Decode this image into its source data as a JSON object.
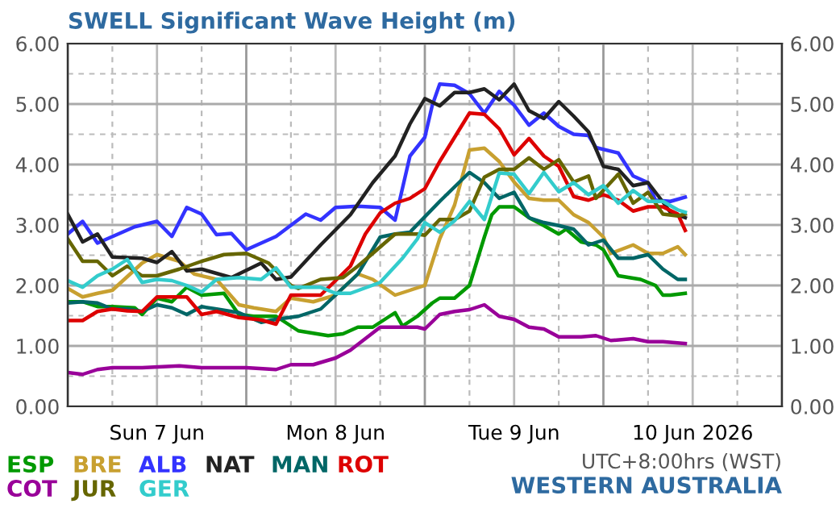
{
  "chart_data": {
    "type": "line",
    "title": "SWELL Significant Wave Height (m)",
    "xlim": [
      "2026-06-07T00:00",
      "2026-06-11T00:00"
    ],
    "xticks": [
      {
        "value": "2026-06-07T00:00",
        "label": null
      },
      {
        "value": "2026-06-07T06:00",
        "label": null
      },
      {
        "value": "2026-06-07T12:00",
        "label": "Sun 7 Jun"
      },
      {
        "value": "2026-06-07T18:00",
        "label": null
      },
      {
        "value": "2026-06-08T00:00",
        "label": null
      },
      {
        "value": "2026-06-08T06:00",
        "label": null
      },
      {
        "value": "2026-06-08T12:00",
        "label": "Mon 8 Jun"
      },
      {
        "value": "2026-06-08T18:00",
        "label": null
      },
      {
        "value": "2026-06-09T00:00",
        "label": null
      },
      {
        "value": "2026-06-09T06:00",
        "label": null
      },
      {
        "value": "2026-06-09T12:00",
        "label": "Tue 9 Jun"
      },
      {
        "value": "2026-06-09T18:00",
        "label": null
      },
      {
        "value": "2026-06-10T00:00",
        "label": null
      },
      {
        "value": "2026-06-10T06:00",
        "label": null
      },
      {
        "value": "2026-06-10T12:00",
        "label": "10 Jun 2026"
      },
      {
        "value": "2026-06-10T18:00",
        "label": null
      },
      {
        "value": "2026-06-11T00:00",
        "label": null
      }
    ],
    "ylim": [
      0,
      6
    ],
    "yticks": [
      {
        "value": 0,
        "label": "0.00"
      },
      {
        "value": 0.5,
        "label": null
      },
      {
        "value": 1,
        "label": "1.00"
      },
      {
        "value": 1.5,
        "label": null
      },
      {
        "value": 2,
        "label": "2.00"
      },
      {
        "value": 2.5,
        "label": null
      },
      {
        "value": 3,
        "label": "3.00"
      },
      {
        "value": 3.5,
        "label": null
      },
      {
        "value": 4,
        "label": "4.00"
      },
      {
        "value": 4.5,
        "label": null
      },
      {
        "value": 5,
        "label": "5.00"
      },
      {
        "value": 5.5,
        "label": null
      },
      {
        "value": 6,
        "label": "6.00"
      }
    ],
    "y2lim": [
      0,
      6
    ],
    "y2ticks": [
      {
        "value": 0,
        "label": "0.00"
      },
      {
        "value": 1,
        "label": "1.00"
      },
      {
        "value": 2,
        "label": "2.00"
      },
      {
        "value": 3,
        "label": "3.00"
      },
      {
        "value": 4,
        "label": "4.00"
      },
      {
        "value": 5,
        "label": "5.00"
      },
      {
        "value": 6,
        "label": "6.00"
      }
    ],
    "grid": true,
    "legend": "bottom",
    "marker": "none",
    "line_style": "solid",
    "annotations": [
      "UTC+8:00hrs (WST)",
      "WESTERN AUSTRALIA"
    ],
    "series": [
      {
        "name": "ESP",
        "color": "#009900",
        "x": [
          "2026-06-07T00:00",
          "2026-06-07T02:00",
          "2026-06-07T04:00",
          "2026-06-07T06:00",
          "2026-06-07T09:00",
          "2026-06-07T10:00",
          "2026-06-07T12:00",
          "2026-06-07T14:00",
          "2026-06-07T16:00",
          "2026-06-07T18:00",
          "2026-06-07T21:00",
          "2026-06-07T23:00",
          "2026-06-08T01:00",
          "2026-06-08T04:00",
          "2026-06-08T07:00",
          "2026-06-08T11:00",
          "2026-06-08T13:00",
          "2026-06-08T15:00",
          "2026-06-08T17:00",
          "2026-06-08T20:00",
          "2026-06-08T21:00",
          "2026-06-08T23:00",
          "2026-06-09T01:00",
          "2026-06-09T02:00",
          "2026-06-09T04:00",
          "2026-06-09T06:00",
          "2026-06-09T08:00",
          "2026-06-09T09:00",
          "2026-06-09T10:00",
          "2026-06-09T12:00",
          "2026-06-09T14:00",
          "2026-06-09T16:00",
          "2026-06-09T18:00",
          "2026-06-09T19:00",
          "2026-06-09T21:00",
          "2026-06-09T23:00",
          "2026-06-10T00:00",
          "2026-06-10T02:00",
          "2026-06-10T05:00",
          "2026-06-10T07:00",
          "2026-06-10T08:00",
          "2026-06-10T09:00",
          "2026-06-10T11:00"
        ],
        "values": [
          1.73,
          1.73,
          1.65,
          1.65,
          1.63,
          1.52,
          1.79,
          1.73,
          1.97,
          1.84,
          1.87,
          1.52,
          1.49,
          1.49,
          1.25,
          1.17,
          1.2,
          1.31,
          1.31,
          1.55,
          1.33,
          1.49,
          1.71,
          1.79,
          1.79,
          2.0,
          2.8,
          3.17,
          3.3,
          3.3,
          3.12,
          2.99,
          2.85,
          2.93,
          2.72,
          2.67,
          2.59,
          2.16,
          2.1,
          2.0,
          1.84,
          1.84,
          1.87
        ]
      },
      {
        "name": "BRE",
        "color": "#c8a030",
        "x": [
          "2026-06-07T00:00",
          "2026-06-07T02:00",
          "2026-06-07T04:00",
          "2026-06-07T06:00",
          "2026-06-07T10:00",
          "2026-06-07T12:00",
          "2026-06-07T15:00",
          "2026-06-07T17:00",
          "2026-06-07T19:00",
          "2026-06-07T20:00",
          "2026-06-07T23:00",
          "2026-06-08T01:00",
          "2026-06-08T04:00",
          "2026-06-08T06:00",
          "2026-06-08T09:00",
          "2026-06-08T12:00",
          "2026-06-08T15:00",
          "2026-06-08T17:00",
          "2026-06-08T20:00",
          "2026-06-08T22:00",
          "2026-06-09T00:00",
          "2026-06-09T02:00",
          "2026-06-09T04:00",
          "2026-06-09T06:00",
          "2026-06-09T08:00",
          "2026-06-09T10:00",
          "2026-06-09T12:00",
          "2026-06-09T14:00",
          "2026-06-09T16:00",
          "2026-06-09T18:00",
          "2026-06-09T20:00",
          "2026-06-09T22:00",
          "2026-06-10T00:00",
          "2026-06-10T01:00",
          "2026-06-10T04:00",
          "2026-06-10T06:00",
          "2026-06-10T08:00",
          "2026-06-10T10:00",
          "2026-06-10T11:00"
        ],
        "values": [
          1.95,
          1.81,
          1.87,
          1.92,
          2.37,
          2.51,
          2.4,
          2.19,
          2.13,
          2.1,
          1.68,
          1.63,
          1.57,
          1.79,
          1.73,
          1.84,
          2.19,
          2.1,
          1.84,
          1.92,
          2.0,
          2.77,
          3.33,
          4.24,
          4.27,
          4.05,
          3.71,
          3.44,
          3.41,
          3.41,
          3.17,
          3.04,
          2.8,
          2.53,
          2.67,
          2.53,
          2.53,
          2.64,
          2.51
        ]
      },
      {
        "name": "ALB",
        "color": "#3333ff",
        "x": [
          "2026-06-07T00:00",
          "2026-06-07T02:00",
          "2026-06-07T04:00",
          "2026-06-07T09:00",
          "2026-06-07T12:00",
          "2026-06-07T14:00",
          "2026-06-07T16:00",
          "2026-06-07T18:00",
          "2026-06-07T20:00",
          "2026-06-07T22:00",
          "2026-06-08T00:00",
          "2026-06-08T04:00",
          "2026-06-08T08:00",
          "2026-06-08T10:00",
          "2026-06-08T12:00",
          "2026-06-08T15:00",
          "2026-06-08T18:00",
          "2026-06-08T20:00",
          "2026-06-08T22:00",
          "2026-06-09T00:00",
          "2026-06-09T01:00",
          "2026-06-09T02:00",
          "2026-06-09T04:00",
          "2026-06-09T06:00",
          "2026-06-09T08:00",
          "2026-06-09T10:00",
          "2026-06-09T12:00",
          "2026-06-09T14:00",
          "2026-06-09T16:00",
          "2026-06-09T18:00",
          "2026-06-09T20:00",
          "2026-06-09T22:00",
          "2026-06-09T23:00",
          "2026-06-10T02:00",
          "2026-06-10T04:00",
          "2026-06-10T06:00",
          "2026-06-10T07:00",
          "2026-06-10T09:00",
          "2026-06-10T11:00"
        ],
        "values": [
          2.85,
          3.06,
          2.7,
          2.97,
          3.06,
          2.81,
          3.29,
          3.18,
          2.84,
          2.86,
          2.59,
          2.81,
          3.18,
          3.08,
          3.29,
          3.31,
          3.29,
          3.08,
          4.14,
          4.45,
          4.98,
          5.33,
          5.31,
          5.17,
          4.85,
          5.21,
          4.98,
          4.65,
          4.85,
          4.63,
          4.5,
          4.48,
          4.28,
          4.19,
          3.81,
          3.7,
          3.41,
          3.39,
          3.46
        ]
      },
      {
        "name": "NAT",
        "color": "#222222",
        "x": [
          "2026-06-07T00:00",
          "2026-06-07T02:00",
          "2026-06-07T04:00",
          "2026-06-07T06:00",
          "2026-06-07T10:00",
          "2026-06-07T12:00",
          "2026-06-07T14:00",
          "2026-06-07T16:00",
          "2026-06-07T18:00",
          "2026-06-07T22:00",
          "2026-06-08T02:00",
          "2026-06-08T04:00",
          "2026-06-08T06:00",
          "2026-06-08T10:00",
          "2026-06-08T14:00",
          "2026-06-08T17:00",
          "2026-06-08T20:00",
          "2026-06-08T22:00",
          "2026-06-09T00:00",
          "2026-06-09T02:00",
          "2026-06-09T04:00",
          "2026-06-09T06:00",
          "2026-06-09T08:00",
          "2026-06-09T10:00",
          "2026-06-09T12:00",
          "2026-06-09T14:00",
          "2026-06-09T16:00",
          "2026-06-09T18:00",
          "2026-06-09T20:00",
          "2026-06-09T22:00",
          "2026-06-10T00:00",
          "2026-06-10T02:00",
          "2026-06-10T04:00",
          "2026-06-10T06:00",
          "2026-06-10T08:00",
          "2026-06-10T09:00",
          "2026-06-10T11:00"
        ],
        "values": [
          3.18,
          2.72,
          2.85,
          2.47,
          2.45,
          2.38,
          2.56,
          2.24,
          2.27,
          2.13,
          2.37,
          2.1,
          2.14,
          2.67,
          3.17,
          3.7,
          4.14,
          4.67,
          5.09,
          4.97,
          5.19,
          5.19,
          5.25,
          5.07,
          5.33,
          4.89,
          4.76,
          5.04,
          4.8,
          4.54,
          3.97,
          3.92,
          3.65,
          3.7,
          3.38,
          3.21,
          3.12
        ]
      },
      {
        "name": "MAN",
        "color": "#006666",
        "x": [
          "2026-06-07T00:00",
          "2026-06-07T02:00",
          "2026-06-07T04:00",
          "2026-06-07T06:00",
          "2026-06-07T08:00",
          "2026-06-07T10:00",
          "2026-06-07T12:00",
          "2026-06-07T14:00",
          "2026-06-07T16:00",
          "2026-06-07T18:00",
          "2026-06-07T20:00",
          "2026-06-07T23:00",
          "2026-06-08T02:00",
          "2026-06-08T04:00",
          "2026-06-08T07:00",
          "2026-06-08T10:00",
          "2026-06-08T12:00",
          "2026-06-08T15:00",
          "2026-06-08T18:00",
          "2026-06-08T20:00",
          "2026-06-08T22:00",
          "2026-06-09T02:00",
          "2026-06-09T06:00",
          "2026-06-09T08:00",
          "2026-06-09T10:00",
          "2026-06-09T12:00",
          "2026-06-09T14:00",
          "2026-06-09T16:00",
          "2026-06-09T18:00",
          "2026-06-09T20:00",
          "2026-06-09T22:00",
          "2026-06-10T00:00",
          "2026-06-10T02:00",
          "2026-06-10T04:00",
          "2026-06-10T06:00",
          "2026-06-10T08:00",
          "2026-06-10T10:00",
          "2026-06-10T11:00"
        ],
        "values": [
          1.71,
          1.73,
          1.71,
          1.61,
          1.61,
          1.57,
          1.68,
          1.63,
          1.52,
          1.65,
          1.61,
          1.55,
          1.39,
          1.44,
          1.49,
          1.61,
          1.84,
          2.19,
          2.8,
          2.85,
          2.88,
          3.39,
          3.87,
          3.7,
          3.44,
          3.54,
          3.12,
          3.04,
          2.99,
          2.93,
          2.67,
          2.75,
          2.45,
          2.45,
          2.51,
          2.27,
          2.1,
          2.1
        ]
      },
      {
        "name": "ROT",
        "color": "#dd0000",
        "x": [
          "2026-06-07T00:00",
          "2026-06-07T02:00",
          "2026-06-07T04:00",
          "2026-06-07T06:00",
          "2026-06-07T08:00",
          "2026-06-07T10:00",
          "2026-06-07T12:00",
          "2026-06-07T14:00",
          "2026-06-07T16:00",
          "2026-06-07T18:00",
          "2026-06-07T20:00",
          "2026-06-07T23:00",
          "2026-06-08T02:00",
          "2026-06-08T04:00",
          "2026-06-08T06:00",
          "2026-06-08T10:00",
          "2026-06-08T14:00",
          "2026-06-08T16:00",
          "2026-06-08T18:00",
          "2026-06-08T20:00",
          "2026-06-08T22:00",
          "2026-06-09T00:00",
          "2026-06-09T02:00",
          "2026-06-09T04:00",
          "2026-06-09T06:00",
          "2026-06-09T08:00",
          "2026-06-09T10:00",
          "2026-06-09T12:00",
          "2026-06-09T14:00",
          "2026-06-09T16:00",
          "2026-06-09T18:00",
          "2026-06-09T20:00",
          "2026-06-09T22:00",
          "2026-06-10T00:00",
          "2026-06-10T02:00",
          "2026-06-10T04:00",
          "2026-06-10T06:00",
          "2026-06-10T08:00",
          "2026-06-10T10:00",
          "2026-06-10T11:00"
        ],
        "values": [
          1.42,
          1.42,
          1.57,
          1.61,
          1.58,
          1.57,
          1.81,
          1.81,
          1.81,
          1.52,
          1.57,
          1.47,
          1.43,
          1.36,
          1.84,
          1.84,
          2.32,
          2.85,
          3.2,
          3.36,
          3.44,
          3.6,
          4.05,
          4.45,
          4.85,
          4.83,
          4.59,
          4.16,
          4.43,
          4.14,
          3.97,
          3.47,
          3.41,
          3.5,
          3.41,
          3.23,
          3.3,
          3.3,
          3.18,
          2.91
        ]
      },
      {
        "name": "COT",
        "color": "#990099",
        "x": [
          "2026-06-07T00:00",
          "2026-06-07T02:00",
          "2026-06-07T04:00",
          "2026-06-07T06:00",
          "2026-06-07T10:00",
          "2026-06-07T15:00",
          "2026-06-07T18:00",
          "2026-06-08T00:00",
          "2026-06-08T04:00",
          "2026-06-08T06:00",
          "2026-06-08T09:00",
          "2026-06-08T12:00",
          "2026-06-08T14:00",
          "2026-06-08T16:00",
          "2026-06-08T18:00",
          "2026-06-08T20:00",
          "2026-06-08T23:00",
          "2026-06-09T00:00",
          "2026-06-09T02:00",
          "2026-06-09T04:00",
          "2026-06-09T06:00",
          "2026-06-09T08:00",
          "2026-06-09T10:00",
          "2026-06-09T12:00",
          "2026-06-09T14:00",
          "2026-06-09T16:00",
          "2026-06-09T18:00",
          "2026-06-09T21:00",
          "2026-06-09T23:00",
          "2026-06-10T01:00",
          "2026-06-10T04:00",
          "2026-06-10T06:00",
          "2026-06-10T08:00",
          "2026-06-10T11:00"
        ],
        "values": [
          0.56,
          0.53,
          0.61,
          0.64,
          0.64,
          0.67,
          0.64,
          0.64,
          0.61,
          0.69,
          0.69,
          0.8,
          0.93,
          1.12,
          1.31,
          1.31,
          1.31,
          1.28,
          1.52,
          1.57,
          1.6,
          1.68,
          1.49,
          1.44,
          1.31,
          1.28,
          1.15,
          1.15,
          1.17,
          1.09,
          1.12,
          1.07,
          1.07,
          1.04
        ]
      },
      {
        "name": "JUR",
        "color": "#666600",
        "x": [
          "2026-06-07T00:00",
          "2026-06-07T02:00",
          "2026-06-07T04:00",
          "2026-06-07T06:00",
          "2026-06-07T08:00",
          "2026-06-07T10:00",
          "2026-06-07T12:00",
          "2026-06-07T15:00",
          "2026-06-07T18:00",
          "2026-06-07T21:00",
          "2026-06-08T00:00",
          "2026-06-08T03:00",
          "2026-06-08T06:00",
          "2026-06-08T07:00",
          "2026-06-08T10:00",
          "2026-06-08T13:00",
          "2026-06-08T15:00",
          "2026-06-08T17:00",
          "2026-06-08T20:00",
          "2026-06-08T23:00",
          "2026-06-09T00:00",
          "2026-06-09T02:00",
          "2026-06-09T04:00",
          "2026-06-09T06:00",
          "2026-06-09T08:00",
          "2026-06-09T10:00",
          "2026-06-09T12:00",
          "2026-06-09T14:00",
          "2026-06-09T16:00",
          "2026-06-09T18:00",
          "2026-06-09T20:00",
          "2026-06-09T22:00",
          "2026-06-09T23:00",
          "2026-06-10T02:00",
          "2026-06-10T04:00",
          "2026-06-10T06:00",
          "2026-06-10T08:00",
          "2026-06-10T10:00",
          "2026-06-10T11:00"
        ],
        "values": [
          2.77,
          2.4,
          2.4,
          2.16,
          2.32,
          2.16,
          2.16,
          2.27,
          2.4,
          2.51,
          2.53,
          2.37,
          2.0,
          1.95,
          2.1,
          2.13,
          2.32,
          2.53,
          2.85,
          2.85,
          2.83,
          3.09,
          3.09,
          3.23,
          3.79,
          3.92,
          3.92,
          4.11,
          3.92,
          4.08,
          3.71,
          3.81,
          3.44,
          3.84,
          3.36,
          3.54,
          3.18,
          3.15,
          3.18
        ]
      },
      {
        "name": "GER",
        "color": "#33cccc",
        "x": [
          "2026-06-07T00:00",
          "2026-06-07T02:00",
          "2026-06-07T04:00",
          "2026-06-07T06:00",
          "2026-06-07T08:00",
          "2026-06-07T10:00",
          "2026-06-07T12:00",
          "2026-06-07T14:00",
          "2026-06-07T16:00",
          "2026-06-07T18:00",
          "2026-06-07T20:00",
          "2026-06-07T23:00",
          "2026-06-08T02:00",
          "2026-06-08T04:00",
          "2026-06-08T06:00",
          "2026-06-08T10:00",
          "2026-06-08T12:00",
          "2026-06-08T14:00",
          "2026-06-08T18:00",
          "2026-06-08T21:00",
          "2026-06-08T23:00",
          "2026-06-09T00:00",
          "2026-06-09T02:00",
          "2026-06-09T04:00",
          "2026-06-09T06:00",
          "2026-06-09T08:00",
          "2026-06-09T10:00",
          "2026-06-09T12:00",
          "2026-06-09T14:00",
          "2026-06-09T16:00",
          "2026-06-09T18:00",
          "2026-06-09T20:00",
          "2026-06-09T22:00",
          "2026-06-10T00:00",
          "2026-06-10T02:00",
          "2026-06-10T04:00",
          "2026-06-10T06:00",
          "2026-06-10T08:00",
          "2026-06-10T10:00",
          "2026-06-10T11:00"
        ],
        "values": [
          2.08,
          1.97,
          2.16,
          2.27,
          2.43,
          2.05,
          2.1,
          2.08,
          2.0,
          1.89,
          2.1,
          2.13,
          2.1,
          2.29,
          1.97,
          1.97,
          1.87,
          1.87,
          2.05,
          2.45,
          2.77,
          3.04,
          2.88,
          3.07,
          3.39,
          3.09,
          3.86,
          3.84,
          3.52,
          3.87,
          3.55,
          3.7,
          3.5,
          3.65,
          3.36,
          3.57,
          3.39,
          3.39,
          3.25,
          3.21
        ]
      }
    ]
  }
}
